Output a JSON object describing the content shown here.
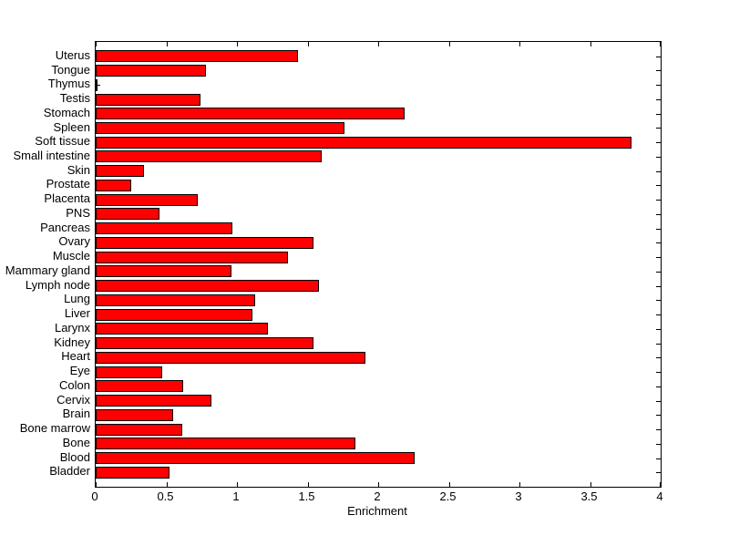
{
  "figure": {
    "background_color": "#ffffff",
    "axis_color": "#000000"
  },
  "chart_data": {
    "type": "bar",
    "orientation": "horizontal",
    "title": "",
    "xlabel": "Enrichment",
    "ylabel": "",
    "xlim": [
      0,
      4
    ],
    "xticks": [
      0,
      0.5,
      1,
      1.5,
      2,
      2.5,
      3,
      3.5,
      4
    ],
    "xtick_labels": [
      "0",
      "0.5",
      "1",
      "1.5",
      "2",
      "2.5",
      "3",
      "3.5",
      "4"
    ],
    "grid": false,
    "legend": null,
    "bar_color": "#ff0000",
    "bar_edge_color": "#000000",
    "categories": [
      "Uterus",
      "Tongue",
      "Thymus",
      "Testis",
      "Stomach",
      "Spleen",
      "Soft tissue",
      "Small intestine",
      "Skin",
      "Prostate",
      "Placenta",
      "PNS",
      "Pancreas",
      "Ovary",
      "Muscle",
      "Mammary gland",
      "Lymph node",
      "Lung",
      "Liver",
      "Larynx",
      "Kidney",
      "Heart",
      "Eye",
      "Colon",
      "Cervix",
      "Brain",
      "Bone marrow",
      "Bone",
      "Blood",
      "Bladder"
    ],
    "values": [
      1.43,
      0.78,
      0.01,
      0.74,
      2.19,
      1.76,
      3.79,
      1.6,
      0.34,
      0.25,
      0.72,
      0.45,
      0.97,
      1.54,
      1.36,
      0.96,
      1.58,
      1.13,
      1.11,
      1.22,
      1.54,
      1.91,
      0.47,
      0.62,
      0.82,
      0.55,
      0.61,
      1.84,
      2.26,
      0.52
    ],
    "category_order_note": "listed top to bottom as displayed"
  }
}
